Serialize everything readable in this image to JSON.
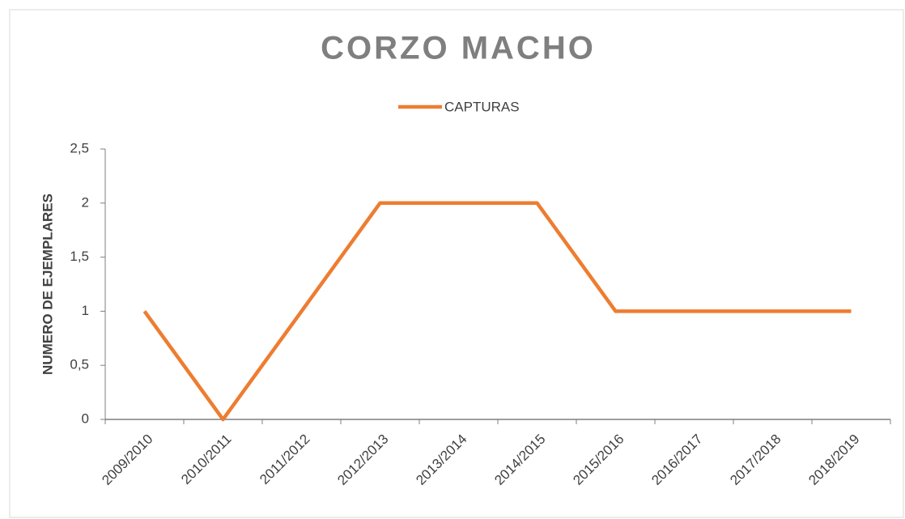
{
  "chart_data": {
    "type": "line",
    "title": "CORZO MACHO",
    "y_label": "NUMERO DE EJEMPLARES",
    "categories": [
      "2009/2010",
      "2010/2011",
      "2011/2012",
      "2012/2013",
      "2013/2014",
      "2014/2015",
      "2015/2016",
      "2016/2017",
      "2017/2018",
      "2018/2019"
    ],
    "series": [
      {
        "name": "CAPTURAS",
        "color": "#ed7d31",
        "values": [
          1,
          0,
          1,
          2,
          2,
          2,
          1,
          1,
          1,
          1
        ]
      }
    ],
    "ylim": [
      0,
      2.5
    ],
    "yticks": [
      0,
      {
        "value": 0.5,
        "label": "0,5"
      },
      1,
      {
        "value": 1.5,
        "label": "1,5"
      },
      2,
      {
        "value": 2.5,
        "label": "2,5"
      }
    ],
    "grid": false,
    "legend": "top"
  }
}
